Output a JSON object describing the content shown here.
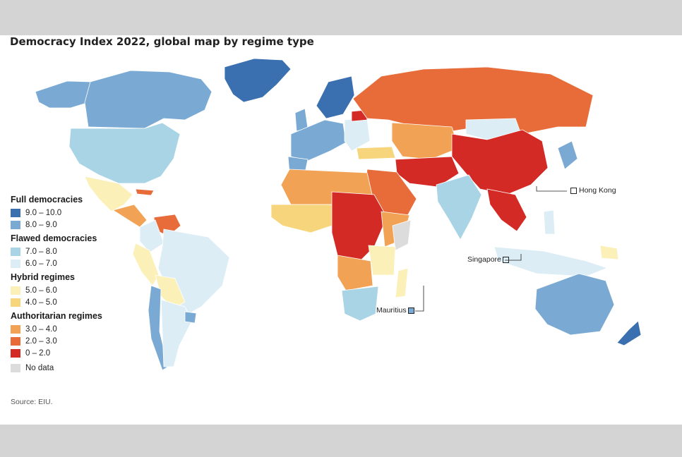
{
  "title": "Democracy Index 2022, global map by regime type",
  "legend": {
    "groups": [
      {
        "name": "Full democracies",
        "items": [
          {
            "label": "9.0 – 10.0",
            "color": "#3a6fb0"
          },
          {
            "label": "8.0 – 9.0",
            "color": "#7aaad4"
          }
        ]
      },
      {
        "name": "Flawed democracies",
        "items": [
          {
            "label": "7.0 – 8.0",
            "color": "#a9d4e6"
          },
          {
            "label": "6.0 – 7.0",
            "color": "#dcedf5"
          }
        ]
      },
      {
        "name": "Hybrid regimes",
        "items": [
          {
            "label": "5.0 – 6.0",
            "color": "#fbf0b8"
          },
          {
            "label": "4.0 – 5.0",
            "color": "#f6d57c"
          }
        ]
      },
      {
        "name": "Authoritarian regimes",
        "items": [
          {
            "label": "3.0 – 4.0",
            "color": "#f2a254"
          },
          {
            "label": "2.0 – 3.0",
            "color": "#e86c3a"
          },
          {
            "label": "0 – 2.0",
            "color": "#d42a26"
          }
        ]
      }
    ],
    "no_data": {
      "label": "No data",
      "color": "#dcdcdc"
    }
  },
  "callouts": {
    "hong_kong": "Hong Kong",
    "singapore": "Singapore",
    "mauritius": "Mauritius"
  },
  "source": "Source: EIU."
}
